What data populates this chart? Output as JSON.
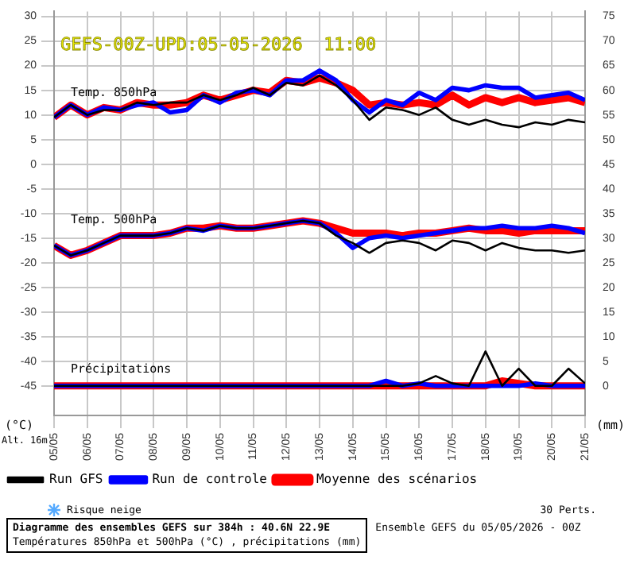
{
  "chart_data": {
    "type": "line",
    "title": "GEFS-00Z-UPD:05-05-2026  11:00",
    "x": [
      "2026-05-05T00:00",
      "2026-05-05T12:00",
      "2026-05-06T00:00",
      "2026-05-06T12:00",
      "2026-05-07T00:00",
      "2026-05-07T12:00",
      "2026-05-08T00:00",
      "2026-05-08T12:00",
      "2026-05-09T00:00",
      "2026-05-09T12:00",
      "2026-05-10T00:00",
      "2026-05-10T12:00",
      "2026-05-11T00:00",
      "2026-05-11T12:00",
      "2026-05-12T00:00",
      "2026-05-12T12:00",
      "2026-05-13T00:00",
      "2026-05-13T12:00",
      "2026-05-14T00:00",
      "2026-05-14T12:00",
      "2026-05-15T00:00",
      "2026-05-15T12:00",
      "2026-05-16T00:00",
      "2026-05-16T12:00",
      "2026-05-17T00:00",
      "2026-05-17T12:00",
      "2026-05-18T00:00",
      "2026-05-18T12:00",
      "2026-05-19T00:00",
      "2026-05-19T12:00",
      "2026-05-20T00:00",
      "2026-05-20T12:00",
      "2026-05-21T00:00"
    ],
    "xlim": [
      "2026-05-05",
      "2026-05-21"
    ],
    "xticks": [
      {
        "value": "2026-05-05",
        "label": "05/05"
      },
      {
        "value": "2026-05-06",
        "label": "06/05"
      },
      {
        "value": "2026-05-07",
        "label": "07/05"
      },
      {
        "value": "2026-05-08",
        "label": "08/05"
      },
      {
        "value": "2026-05-09",
        "label": "09/05"
      },
      {
        "value": "2026-05-10",
        "label": "10/05"
      },
      {
        "value": "2026-05-11",
        "label": "11/05"
      },
      {
        "value": "2026-05-12",
        "label": "12/05"
      },
      {
        "value": "2026-05-13",
        "label": "13/05"
      },
      {
        "value": "2026-05-14",
        "label": "14/05"
      },
      {
        "value": "2026-05-15",
        "label": "15/05"
      },
      {
        "value": "2026-05-16",
        "label": "16/05"
      },
      {
        "value": "2026-05-17",
        "label": "17/05"
      },
      {
        "value": "2026-05-18",
        "label": "18/05"
      },
      {
        "value": "2026-05-19",
        "label": "19/05"
      },
      {
        "value": "2026-05-20",
        "label": "20/05"
      },
      {
        "value": "2026-05-21",
        "label": "21/05"
      }
    ],
    "ylim": [
      -51,
      31
    ],
    "yticks": [
      -45,
      -40,
      -35,
      -30,
      -25,
      -20,
      -15,
      -10,
      -5,
      0,
      5,
      10,
      15,
      20,
      25,
      30
    ],
    "y2lim": [
      -6,
      76
    ],
    "y2ticks": [
      0,
      5,
      10,
      15,
      20,
      25,
      30,
      35,
      40,
      45,
      50,
      55,
      60,
      65,
      70,
      75
    ],
    "grid": true,
    "legend": "bottom",
    "marker": "none",
    "line_style": "solid",
    "series": [
      {
        "name": "Moyenne des scénarios",
        "color": "#ff0000",
        "values": [
          9.5,
          12,
          10,
          11.5,
          11,
          12.5,
          12,
          12,
          12.5,
          14,
          13,
          14,
          15,
          14.5,
          17,
          16.5,
          17.5,
          16.5,
          15,
          12,
          12.5,
          12,
          12.5,
          12,
          14,
          12,
          13.5,
          12.5,
          13.5,
          12.5,
          13,
          13.5,
          12.5
        ]
      },
      {
        "name": "Run de controle",
        "color": "#0000ff",
        "values": [
          9.5,
          12,
          10,
          11.5,
          11,
          12,
          12.5,
          10.5,
          11,
          14,
          12.5,
          14.5,
          15,
          14,
          17,
          17,
          19,
          17,
          13,
          10.5,
          13,
          12,
          14.5,
          13,
          15.5,
          15,
          16,
          15.5,
          15.5,
          13.5,
          14,
          14.5,
          13
        ]
      },
      {
        "name": "Run GFS",
        "color": "#000000",
        "values": [
          9.5,
          12,
          10,
          11,
          11,
          12.5,
          12,
          12.5,
          12.5,
          14,
          13,
          14,
          15.5,
          14,
          16.5,
          16,
          18,
          16,
          13,
          9,
          11.5,
          11,
          10,
          11.5,
          9,
          8,
          9,
          8,
          7.5,
          8.5,
          8,
          9,
          8.5
        ]
      },
      {
        "color": "#ff0000",
        "values": [
          -16.5,
          -18.5,
          -17.5,
          -16,
          -14.5,
          -14.5,
          -14.5,
          -14,
          -13,
          -13,
          -12.5,
          -13,
          -13,
          -12.5,
          -12,
          -11.5,
          -12,
          -13,
          -14,
          -14,
          -14,
          -14.5,
          -14,
          -14,
          -13.5,
          -13,
          -13.5,
          -13.5,
          -14,
          -13.5,
          -13.5,
          -13.5,
          -13.5
        ]
      },
      {
        "color": "#0000ff",
        "values": [
          -16.5,
          -18.5,
          -17.5,
          -16,
          -14.5,
          -14.5,
          -14.5,
          -14,
          -13,
          -13.5,
          -12.5,
          -13,
          -13,
          -12.5,
          -12,
          -11.5,
          -12,
          -14,
          -17,
          -15,
          -14.5,
          -15,
          -14.5,
          -14,
          -13.5,
          -13,
          -13,
          -12.5,
          -13,
          -13,
          -12.5,
          -13,
          -14
        ]
      },
      {
        "color": "#000000",
        "values": [
          -16.5,
          -18.5,
          -17.5,
          -16,
          -14.5,
          -14.5,
          -14.5,
          -14,
          -13,
          -13.5,
          -12.5,
          -13,
          -13,
          -12.5,
          -12,
          -11.5,
          -12,
          -14.5,
          -16,
          -18,
          -16,
          -15.5,
          -16,
          -17.5,
          -15.5,
          -16,
          -17.5,
          -16,
          -17,
          -17.5,
          -17.5,
          -18,
          -17.5
        ]
      },
      {
        "color": "#ff0000",
        "axis": "y2",
        "values": [
          0,
          0,
          0,
          0,
          0,
          0,
          0,
          0,
          0,
          0,
          0,
          0,
          0,
          0,
          0,
          0,
          0,
          0,
          0,
          0,
          0,
          0,
          0,
          0,
          0,
          0,
          0,
          1,
          0.5,
          0,
          0,
          0,
          0
        ]
      },
      {
        "color": "#0000ff",
        "axis": "y2",
        "values": [
          0,
          0,
          0,
          0,
          0,
          0,
          0,
          0,
          0,
          0,
          0,
          0,
          0,
          0,
          0,
          0,
          0,
          0,
          0,
          0,
          1,
          0,
          0.5,
          0,
          0,
          0,
          0,
          0,
          0,
          0.5,
          0,
          0,
          0
        ]
      },
      {
        "color": "#000000",
        "axis": "y2",
        "values": [
          0,
          0,
          0,
          0,
          0,
          0,
          0,
          0,
          0,
          0,
          0,
          0,
          0,
          0,
          0,
          0,
          0,
          0,
          0,
          0,
          0,
          0,
          0.5,
          2,
          0.5,
          0,
          7,
          0,
          3.5,
          0,
          0,
          3.5,
          0.5
        ]
      }
    ],
    "annotations": [
      "Temp. 850hPa",
      "Temp. 500hPa",
      "Précipitations",
      "(°C)",
      "(mm)",
      "Alt. 16m",
      "30 Perts.",
      "Risque neige",
      "Diagramme des ensembles GEFS sur 384h : 40.6N 22.9E",
      "Températures 850hPa et 500hPa (°C) , précipitations (mm)",
      "Ensemble GEFS du 05/05/2026 - 00Z"
    ]
  }
}
